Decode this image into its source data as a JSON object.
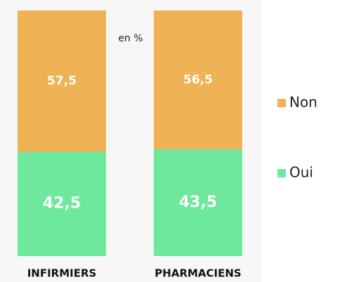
{
  "chart_data": {
    "type": "stacked_bar",
    "annotation": "en %",
    "categories": [
      "INFIRMIERS",
      "PHARMACIENS"
    ],
    "ylim": [
      0,
      100
    ],
    "series": [
      {
        "name": "Oui",
        "color": "#6de89c",
        "values": [
          42.5,
          43.5
        ],
        "value_labels": [
          "42,5",
          "43,5"
        ]
      },
      {
        "name": "Non",
        "color": "#efb254",
        "values": [
          57.5,
          56.5
        ],
        "value_labels": [
          "57,5",
          "56,5"
        ]
      }
    ]
  }
}
